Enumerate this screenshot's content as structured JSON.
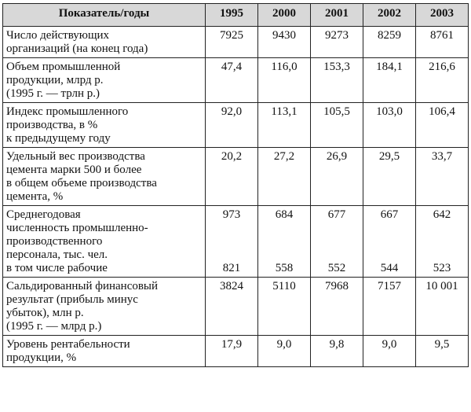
{
  "header": {
    "indicator": "Показатель/годы",
    "years": [
      "1995",
      "2000",
      "2001",
      "2002",
      "2003"
    ]
  },
  "rows": [
    {
      "label": "Число действующих\nорганизаций (на конец года)",
      "values": [
        "7925",
        "9430",
        "9273",
        "8259",
        "8761"
      ]
    },
    {
      "label": "Объем промышленной\nпродукции, млрд р.\n(1995 г. — трлн р.)",
      "values": [
        "47,4",
        "116,0",
        "153,3",
        "184,1",
        "216,6"
      ]
    },
    {
      "label": "Индекс промышленного\nпроизводства, в %\nк предыдущему году",
      "values": [
        "92,0",
        "113,1",
        "105,5",
        "103,0",
        "106,4"
      ]
    },
    {
      "label": "Удельный вес производства\nцемента марки 500 и более\nв общем объеме производства\nцемента, %",
      "values": [
        "20,2",
        "27,2",
        "26,9",
        "29,5",
        "33,7"
      ]
    },
    {
      "label": "Среднегодовая\nчисленность промышленно-\nпроизводственного\nперсонала, тыс. чел.\nв том числе рабочие",
      "values": [
        "973\n\n\n\n821",
        "684\n\n\n\n558",
        "677\n\n\n\n552",
        "667\n\n\n\n544",
        "642\n\n\n\n523"
      ]
    },
    {
      "label": "Сальдированный финансовый\nрезультат (прибыль минус\nубыток), млн р.\n(1995 г. — млрд р.)",
      "values": [
        "3824",
        "5110",
        "7968",
        "7157",
        "10 001"
      ]
    },
    {
      "label": "Уровень рентабельности\nпродукции, %",
      "values": [
        "17,9",
        "9,0",
        "9,8",
        "9,0",
        "9,5"
      ]
    }
  ]
}
